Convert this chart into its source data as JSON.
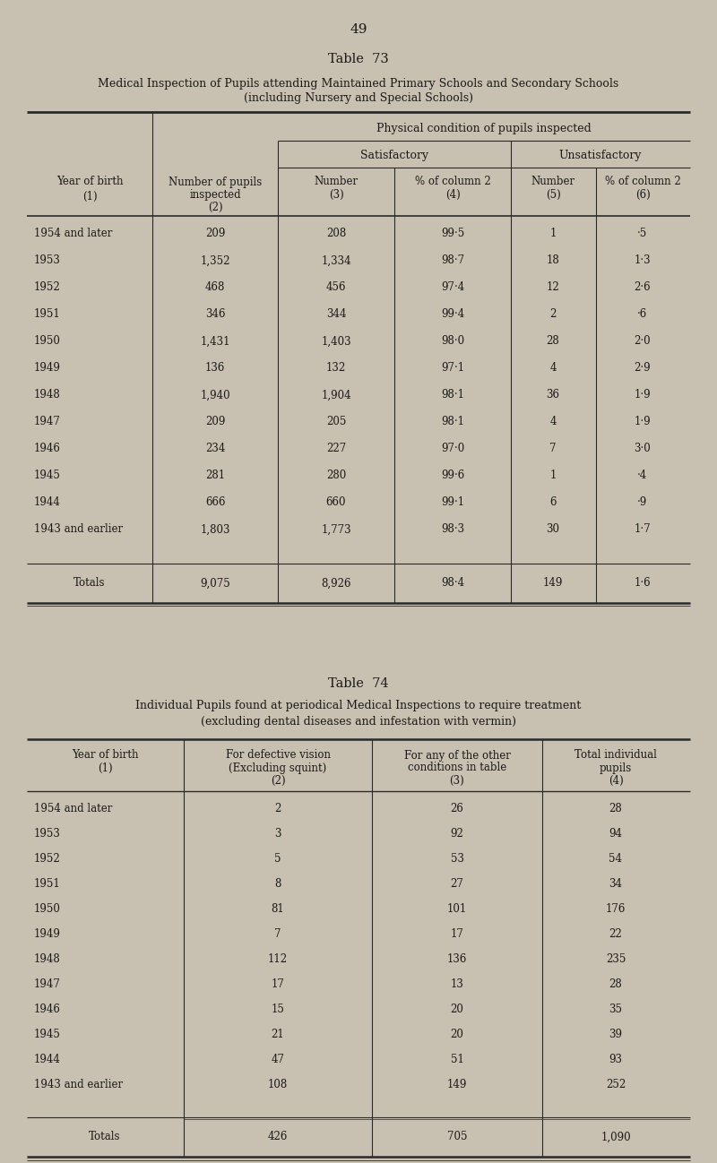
{
  "page_number": "49",
  "table73": {
    "title": "Table  73",
    "subtitle1": "Medical Inspection of Pupils attending Maintained Primary Schools and Secondary Schools",
    "subtitle2": "(including Nursery and Special Schools)",
    "rows": [
      [
        "1954 and later",
        "209",
        "208",
        "99·5",
        "1",
        "·5"
      ],
      [
        "1953",
        "1,352",
        "1,334",
        "98·7",
        "18",
        "1·3"
      ],
      [
        "1952",
        "468",
        "456",
        "97·4",
        "12",
        "2·6"
      ],
      [
        "1951",
        "346",
        "344",
        "99·4",
        "2",
        "·6"
      ],
      [
        "1950",
        "1,431",
        "1,403",
        "98·0",
        "28",
        "2·0"
      ],
      [
        "1949",
        "136",
        "132",
        "97·1",
        "4",
        "2·9"
      ],
      [
        "1948",
        "1,940",
        "1,904",
        "98·1",
        "36",
        "1·9"
      ],
      [
        "1947",
        "209",
        "205",
        "98·1",
        "4",
        "1·9"
      ],
      [
        "1946",
        "234",
        "227",
        "97·0",
        "7",
        "3·0"
      ],
      [
        "1945",
        "281",
        "280",
        "99·6",
        "1",
        "·4"
      ],
      [
        "1944",
        "666",
        "660",
        "99·1",
        "6",
        "·9"
      ],
      [
        "1943 and earlier",
        "1,803",
        "1,773",
        "98·3",
        "30",
        "1·7"
      ]
    ],
    "totals": [
      "Totals",
      "9,075",
      "8,926",
      "98·4",
      "149",
      "1·6"
    ]
  },
  "table74": {
    "title": "Table  74",
    "subtitle1": "Individual Pupils found at periodical Medical Inspections to require treatment",
    "subtitle2": "(excluding dental diseases and infestation with vermin)",
    "rows": [
      [
        "1954 and later",
        "2",
        "26",
        "28"
      ],
      [
        "1953",
        "3",
        "92",
        "94"
      ],
      [
        "1952",
        "5",
        "53",
        "54"
      ],
      [
        "1951",
        "8",
        "27",
        "34"
      ],
      [
        "1950",
        "81",
        "101",
        "176"
      ],
      [
        "1949",
        "7",
        "17",
        "22"
      ],
      [
        "1948",
        "112",
        "136",
        "235"
      ],
      [
        "1947",
        "17",
        "13",
        "28"
      ],
      [
        "1946",
        "15",
        "20",
        "35"
      ],
      [
        "1945",
        "21",
        "20",
        "39"
      ],
      [
        "1944",
        "47",
        "51",
        "93"
      ],
      [
        "1943 and earlier",
        "108",
        "149",
        "252"
      ]
    ],
    "totals": [
      "Totals",
      "426",
      "705",
      "1,090"
    ]
  },
  "bg_color": "#c8c0b0",
  "table_bg": "#d0c8b8",
  "text_color": "#1a1a1a"
}
